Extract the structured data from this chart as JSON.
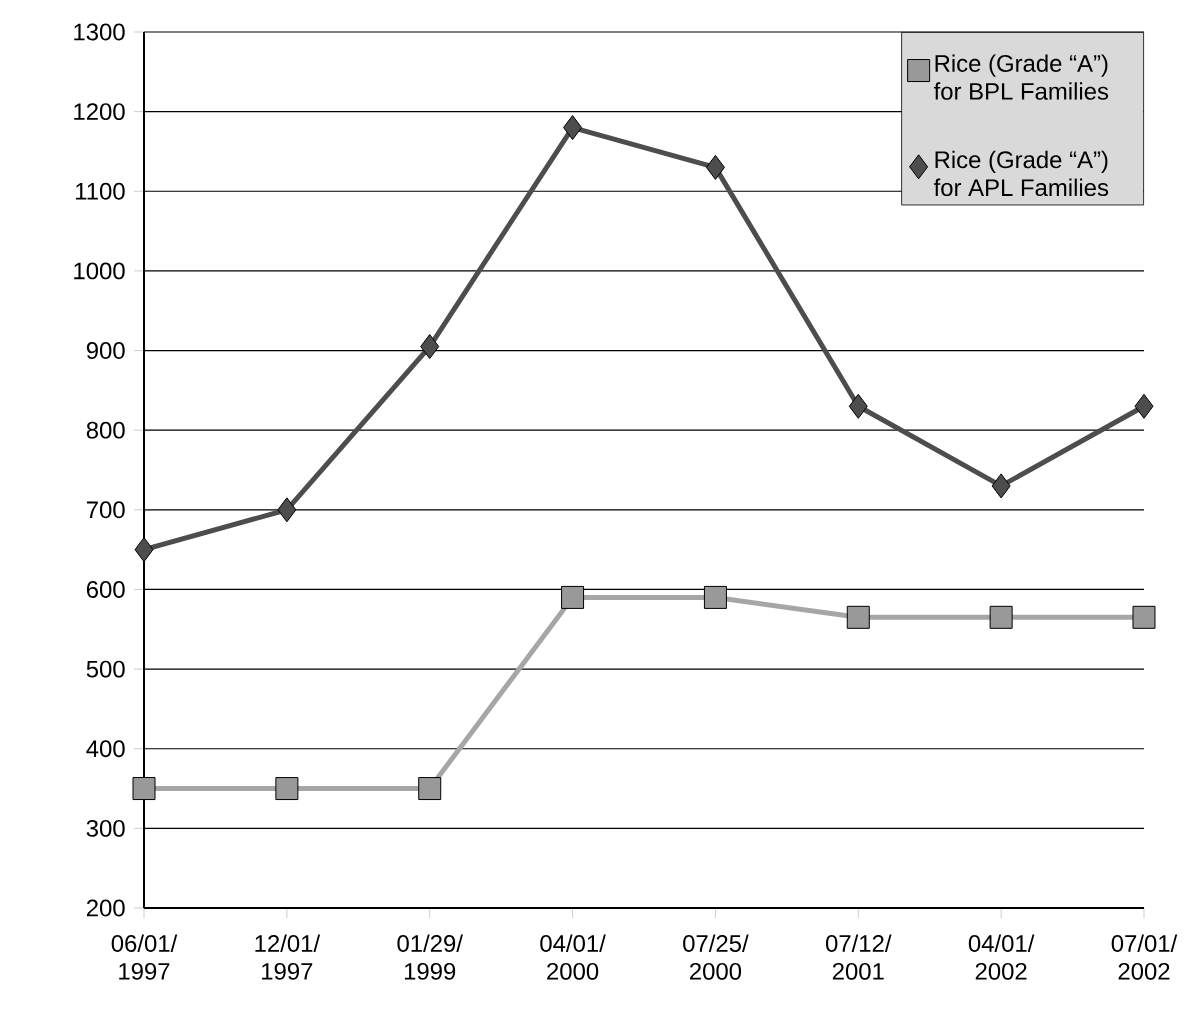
{
  "chart_data": {
    "type": "line",
    "categories": [
      "06/01/ 1997",
      "12/01/ 1997",
      "01/29/ 1999",
      "04/01/ 2000",
      "07/25/ 2000",
      "07/12/ 2001",
      "04/01/ 2002",
      "07/01/ 2002"
    ],
    "series": [
      {
        "name": "Rice (Grade “A”) for BPL Families",
        "color": "#a6a6a6",
        "marker": "square",
        "values": [
          350,
          350,
          350,
          590,
          590,
          565,
          565,
          565
        ]
      },
      {
        "name": "Rice (Grade “A”) for APL Families",
        "color": "#4d4d4d",
        "marker": "diamond",
        "values": [
          650,
          700,
          905,
          1180,
          1130,
          830,
          730,
          830
        ]
      }
    ],
    "ylim": [
      200,
      1300
    ],
    "yticks": [
      200,
      300,
      400,
      500,
      600,
      700,
      800,
      900,
      1000,
      1100,
      1200,
      1300
    ],
    "grid": "y",
    "legend": "top right",
    "line_style": "solid"
  }
}
